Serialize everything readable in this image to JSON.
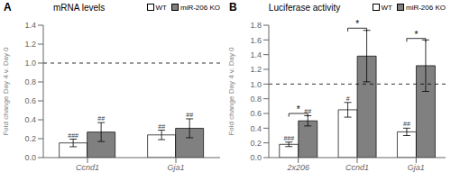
{
  "chart_data": [
    {
      "type": "bar",
      "panel": "A",
      "title": "mRNA levels",
      "ylabel": "Fold change Day 4 v. Day 0",
      "categories": [
        "Ccnd1",
        "Gja1"
      ],
      "series": [
        {
          "name": "WT",
          "color": "#ffffff",
          "edge_color": "#000000",
          "values": [
            0.155,
            0.24
          ],
          "errors": [
            0.04,
            0.05
          ],
          "annotations": [
            "###",
            "##"
          ]
        },
        {
          "name": "miR-206 KO",
          "color": "#808080",
          "edge_color": "#000000",
          "values": [
            0.27,
            0.31
          ],
          "errors": [
            0.1,
            0.1
          ],
          "annotations": [
            "##",
            "##"
          ]
        }
      ],
      "ylim": [
        0,
        1.4
      ],
      "yticks": [
        {
          "value": 0,
          "label": "0.0"
        },
        0.2,
        0.4,
        0.6,
        0.8,
        {
          "value": 1,
          "label": "1.0"
        },
        1.2,
        1.4
      ],
      "reference_line": 1.0,
      "legend": "upper right"
    },
    {
      "type": "bar",
      "panel": "B",
      "title": "Luciferase activity",
      "ylabel": "Fold change Day 4 v. Day 0",
      "categories": [
        "2x206",
        "Ccnd1",
        "Gja1"
      ],
      "series": [
        {
          "name": "WT",
          "color": "#ffffff",
          "edge_color": "#000000",
          "values": [
            0.18,
            0.65,
            0.35
          ],
          "errors": [
            0.03,
            0.1,
            0.05
          ],
          "annotations": [
            "###",
            "#",
            "##"
          ]
        },
        {
          "name": "miR-206 KO",
          "color": "#808080",
          "edge_color": "#000000",
          "values": [
            0.5,
            1.38,
            1.25
          ],
          "errors": [
            0.07,
            0.35,
            0.35
          ],
          "annotations": [
            "##",
            null,
            null
          ]
        }
      ],
      "ylim": [
        0,
        1.8
      ],
      "yticks": [
        {
          "value": 0,
          "label": "0.0"
        },
        0.2,
        0.4,
        0.6,
        0.8,
        {
          "value": 1,
          "label": "1.0"
        },
        1.2,
        1.4,
        1.6,
        1.8
      ],
      "reference_line": 1.0,
      "brackets": [
        {
          "y": 0.6,
          "label": "*"
        },
        {
          "y": 1.76,
          "label": "*"
        },
        {
          "y": 1.62,
          "label": "*"
        }
      ],
      "legend": "upper right"
    }
  ]
}
